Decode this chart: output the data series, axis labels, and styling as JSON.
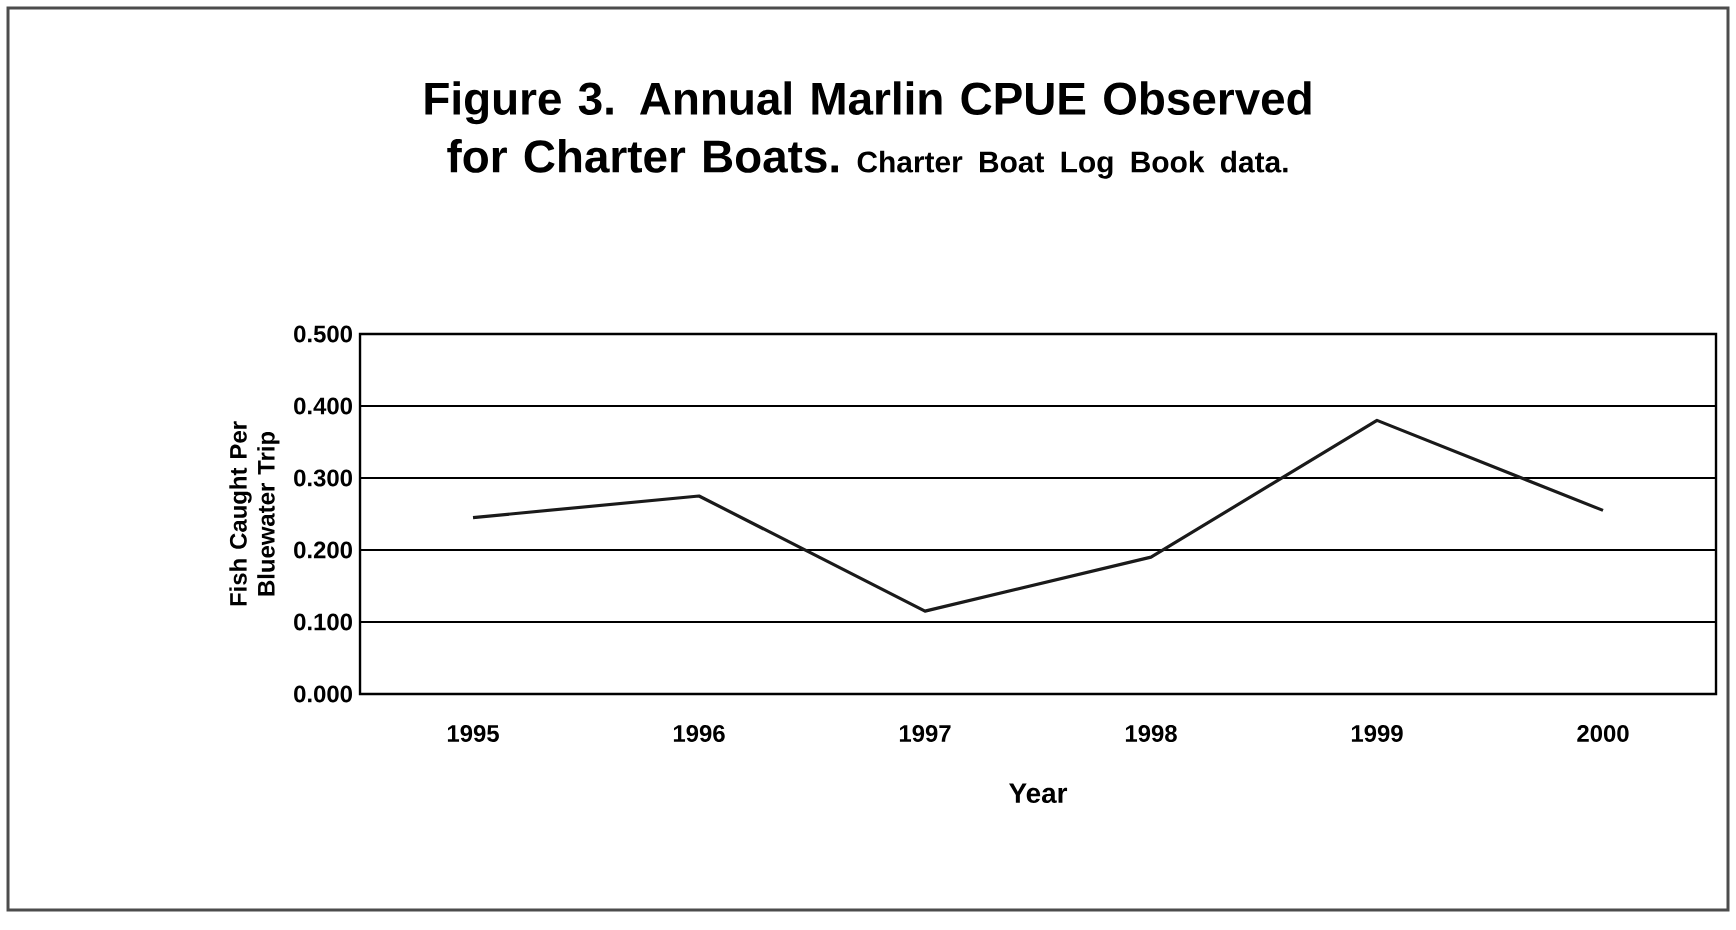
{
  "chart_data": {
    "type": "line",
    "title": "Figure 3.  Annual Marlin CPUE Observed for Charter Boats.",
    "subtitle": "Charter Boat Log Book data.",
    "xlabel": "Year",
    "ylabel": "Fish Caught Per Bluewater Trip",
    "categories": [
      "1995",
      "1996",
      "1997",
      "1998",
      "1999",
      "2000"
    ],
    "series": [
      {
        "color": "#1a1a1a",
        "values": [
          0.245,
          0.275,
          0.115,
          0.19,
          0.38,
          0.255
        ]
      }
    ],
    "ylim": [
      0,
      0.5
    ],
    "yticks": [
      {
        "value": 0,
        "label": "0.000"
      },
      {
        "value": 0.1,
        "label": "0.100"
      },
      {
        "value": 0.2,
        "label": "0.200"
      },
      {
        "value": 0.3,
        "label": "0.300"
      },
      {
        "value": 0.4,
        "label": "0.400"
      },
      {
        "value": 0.5,
        "label": "0.500"
      }
    ],
    "grid": "y",
    "marker": "none",
    "line_style": "solid"
  }
}
